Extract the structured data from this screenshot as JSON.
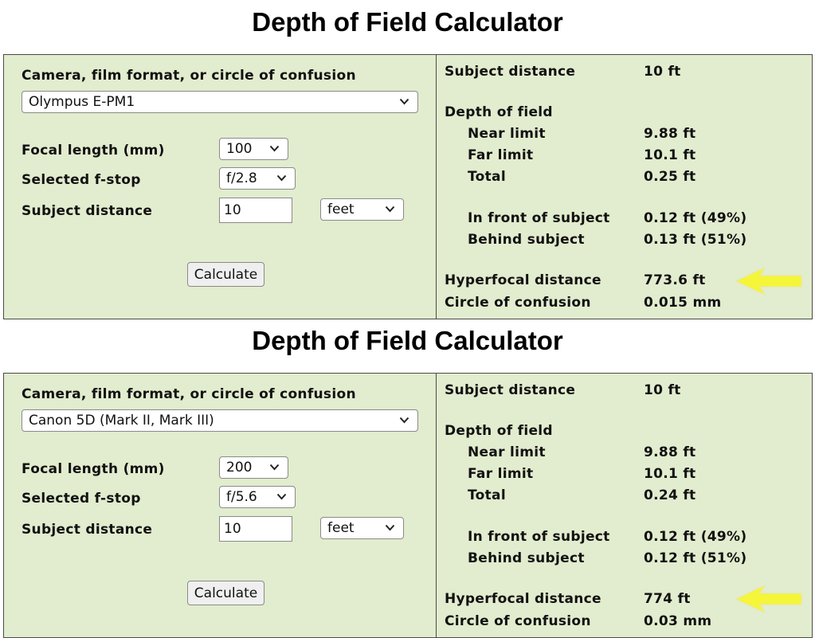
{
  "calculators": [
    {
      "title": "Depth of Field Calculator",
      "camera_label": "Camera, film format, or circle of confusion",
      "camera_value": "Olympus E-PM1",
      "focal_label": "Focal length (mm)",
      "focal_value": "100",
      "fstop_label": "Selected f-stop",
      "fstop_value": "f/2.8",
      "distance_label": "Subject distance",
      "distance_value": "10",
      "unit_value": "feet",
      "calculate_label": "Calculate",
      "results": {
        "subject_distance_label": "Subject distance",
        "subject_distance_value": "10 ft",
        "dof_label": "Depth of field",
        "near_label": "Near limit",
        "near_value": "9.88 ft",
        "far_label": "Far limit",
        "far_value": "10.1 ft",
        "total_label": "Total",
        "total_value": "0.25 ft",
        "front_label": "In front of subject",
        "front_value": "0.12 ft (49%)",
        "behind_label": "Behind subject",
        "behind_value": "0.13 ft (51%)",
        "hyperfocal_label": "Hyperfocal distance",
        "hyperfocal_value": "773.6 ft",
        "coc_label": "Circle of confusion",
        "coc_value": "0.015 mm"
      }
    },
    {
      "title": "Depth of Field Calculator",
      "camera_label": "Camera, film format, or circle of confusion",
      "camera_value": "Canon 5D (Mark II, Mark III)",
      "focal_label": "Focal length (mm)",
      "focal_value": "200",
      "fstop_label": "Selected f-stop",
      "fstop_value": "f/5.6",
      "distance_label": "Subject distance",
      "distance_value": "10",
      "unit_value": "feet",
      "calculate_label": "Calculate",
      "results": {
        "subject_distance_label": "Subject distance",
        "subject_distance_value": "10 ft",
        "dof_label": "Depth of field",
        "near_label": "Near limit",
        "near_value": "9.88 ft",
        "far_label": "Far limit",
        "far_value": "10.1 ft",
        "total_label": "Total",
        "total_value": "0.24 ft",
        "front_label": "In front of subject",
        "front_value": "0.12 ft (49%)",
        "behind_label": "Behind subject",
        "behind_value": "0.12 ft (51%)",
        "hyperfocal_label": "Hyperfocal distance",
        "hyperfocal_value": "774 ft",
        "coc_label": "Circle of confusion",
        "coc_value": "0.03 mm"
      }
    }
  ],
  "colors": {
    "panel_background": "#e2ecce",
    "panel_border": "#4a4a4a",
    "highlight_arrow": "#f5f53a"
  },
  "icons": {
    "dropdown": "chevron-down-icon",
    "highlight": "yellow-arrow-icon"
  }
}
